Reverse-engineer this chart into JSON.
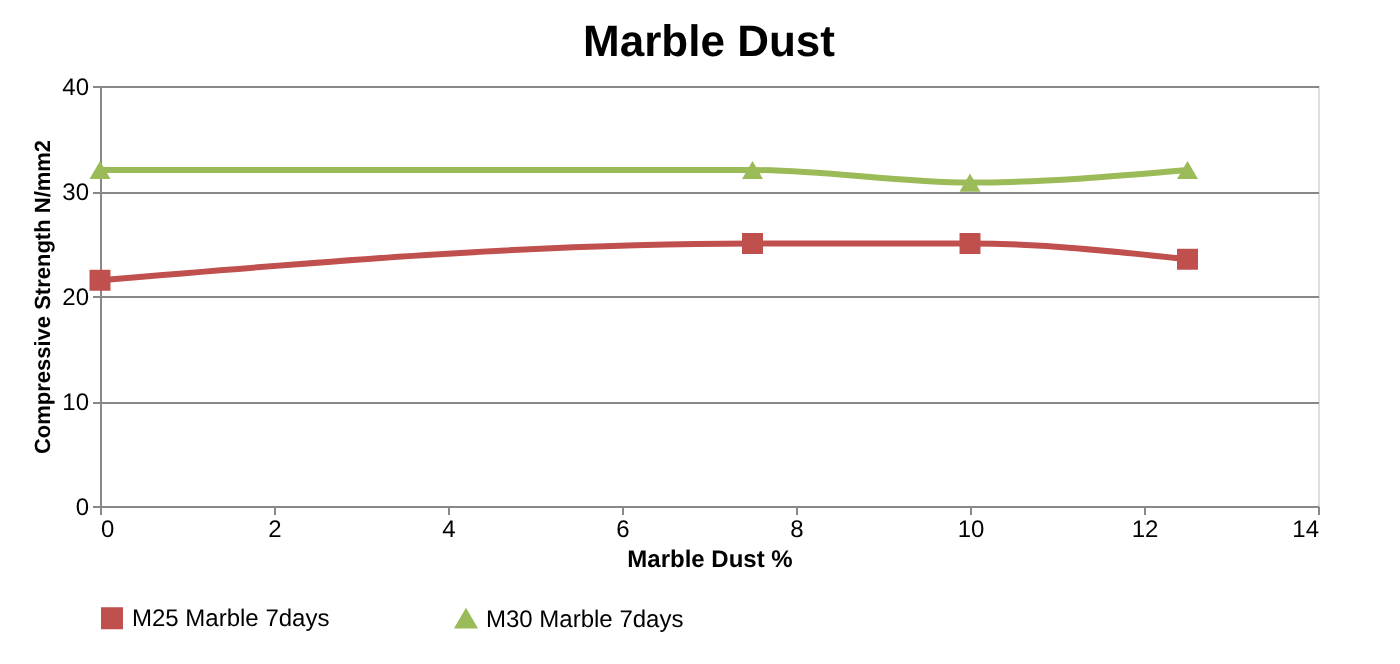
{
  "chart_data": {
    "type": "line",
    "title": "Marble Dust",
    "xlabel": "Marble Dust %",
    "ylabel": "Compressive Strength  N/mm2",
    "x": [
      0,
      7.5,
      10,
      12.5
    ],
    "series": [
      {
        "name": "M25 Marble 7days",
        "color": "#c0504d",
        "marker": "square",
        "values": [
          21.5,
          25,
          25,
          23.5
        ]
      },
      {
        "name": "M30 Marble 7days",
        "color": "#9bbb59",
        "marker": "triangle",
        "values": [
          32,
          32,
          30.8,
          32
        ]
      }
    ],
    "xlim": [
      0,
      14
    ],
    "xticks": [
      0,
      2,
      4,
      6,
      8,
      10,
      12,
      14
    ],
    "ylim": [
      0,
      40
    ],
    "yticks": [
      0,
      10,
      20,
      30,
      40
    ],
    "grid": "y",
    "legend": "bottom",
    "line_style": "solid"
  }
}
